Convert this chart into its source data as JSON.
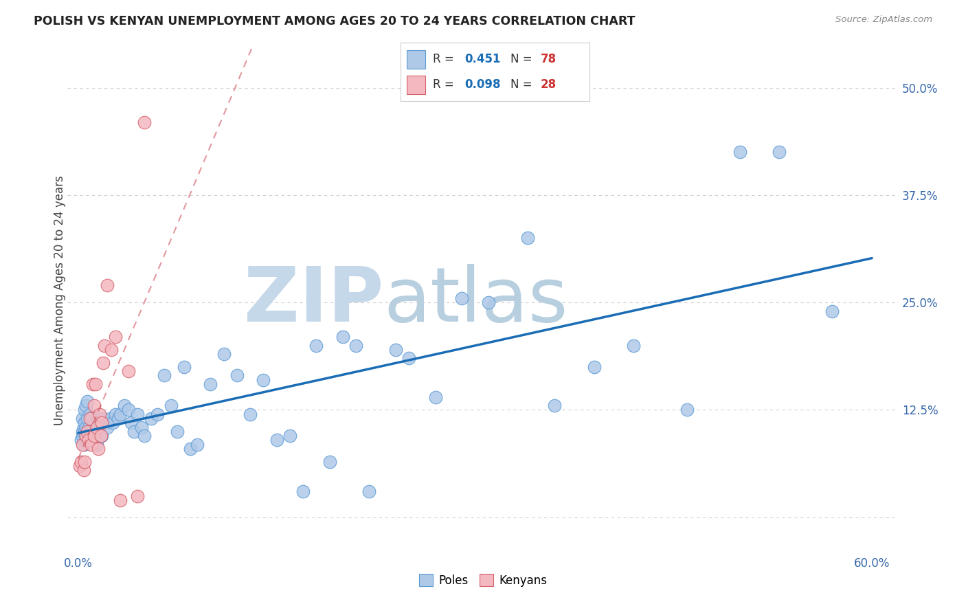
{
  "title": "POLISH VS KENYAN UNEMPLOYMENT AMONG AGES 20 TO 24 YEARS CORRELATION CHART",
  "source": "Source: ZipAtlas.com",
  "ylabel": "Unemployment Among Ages 20 to 24 years",
  "xlim": [
    -0.008,
    0.62
  ],
  "ylim": [
    -0.04,
    0.545
  ],
  "xticks": [
    0.0,
    0.1,
    0.2,
    0.3,
    0.4,
    0.5,
    0.6
  ],
  "xticklabels": [
    "0.0%",
    "",
    "",
    "",
    "",
    "",
    "60.0%"
  ],
  "yticks": [
    0.0,
    0.125,
    0.25,
    0.375,
    0.5
  ],
  "yticklabels": [
    "",
    "12.5%",
    "25.0%",
    "37.5%",
    "50.0%"
  ],
  "grid_color": "#d0d0d0",
  "background_color": "#ffffff",
  "poles_color": "#aec8e8",
  "kenyans_color": "#f4b8c0",
  "poles_edge_color": "#5b9bd5",
  "kenyans_edge_color": "#d45f6a",
  "trend_poles_color": "#1a6db5",
  "trend_kenyans_color": "#d45f6a",
  "poles_R": 0.451,
  "poles_N": 78,
  "kenyans_R": 0.098,
  "kenyans_N": 28,
  "legend_R_color": "#1a6db5",
  "legend_N_color": "#cc3333",
  "watermark_zip": "ZIP",
  "watermark_atlas": "atlas",
  "watermark_color_zip": "#c5d8ea",
  "watermark_color_atlas": "#b8cfe0",
  "poles_x": [
    0.002,
    0.003,
    0.003,
    0.003,
    0.004,
    0.004,
    0.005,
    0.005,
    0.005,
    0.006,
    0.006,
    0.006,
    0.007,
    0.007,
    0.007,
    0.008,
    0.008,
    0.009,
    0.009,
    0.01,
    0.01,
    0.011,
    0.012,
    0.013,
    0.014,
    0.015,
    0.016,
    0.017,
    0.018,
    0.019,
    0.02,
    0.022,
    0.024,
    0.026,
    0.028,
    0.03,
    0.032,
    0.035,
    0.038,
    0.04,
    0.042,
    0.045,
    0.048,
    0.05,
    0.055,
    0.06,
    0.065,
    0.07,
    0.075,
    0.08,
    0.085,
    0.09,
    0.1,
    0.11,
    0.12,
    0.13,
    0.14,
    0.15,
    0.16,
    0.17,
    0.18,
    0.19,
    0.2,
    0.21,
    0.22,
    0.24,
    0.25,
    0.27,
    0.29,
    0.31,
    0.34,
    0.36,
    0.39,
    0.42,
    0.46,
    0.5,
    0.53,
    0.57
  ],
  "poles_y": [
    0.09,
    0.095,
    0.1,
    0.115,
    0.085,
    0.105,
    0.1,
    0.11,
    0.125,
    0.09,
    0.105,
    0.13,
    0.1,
    0.115,
    0.135,
    0.09,
    0.105,
    0.1,
    0.12,
    0.1,
    0.115,
    0.095,
    0.11,
    0.1,
    0.085,
    0.115,
    0.095,
    0.11,
    0.095,
    0.115,
    0.11,
    0.105,
    0.115,
    0.11,
    0.12,
    0.115,
    0.12,
    0.13,
    0.125,
    0.11,
    0.1,
    0.12,
    0.105,
    0.095,
    0.115,
    0.12,
    0.165,
    0.13,
    0.1,
    0.175,
    0.08,
    0.085,
    0.155,
    0.19,
    0.165,
    0.12,
    0.16,
    0.09,
    0.095,
    0.03,
    0.2,
    0.065,
    0.21,
    0.2,
    0.03,
    0.195,
    0.185,
    0.14,
    0.255,
    0.25,
    0.325,
    0.13,
    0.175,
    0.2,
    0.125,
    0.425,
    0.425,
    0.24
  ],
  "kenyans_x": [
    0.001,
    0.002,
    0.003,
    0.004,
    0.005,
    0.006,
    0.007,
    0.008,
    0.009,
    0.01,
    0.011,
    0.012,
    0.012,
    0.013,
    0.014,
    0.015,
    0.016,
    0.017,
    0.018,
    0.019,
    0.02,
    0.022,
    0.025,
    0.028,
    0.032,
    0.038,
    0.045,
    0.05
  ],
  "kenyans_y": [
    0.06,
    0.065,
    0.085,
    0.055,
    0.065,
    0.095,
    0.1,
    0.09,
    0.115,
    0.085,
    0.155,
    0.095,
    0.13,
    0.155,
    0.105,
    0.08,
    0.12,
    0.095,
    0.11,
    0.18,
    0.2,
    0.27,
    0.195,
    0.21,
    0.02,
    0.17,
    0.025,
    0.46
  ]
}
